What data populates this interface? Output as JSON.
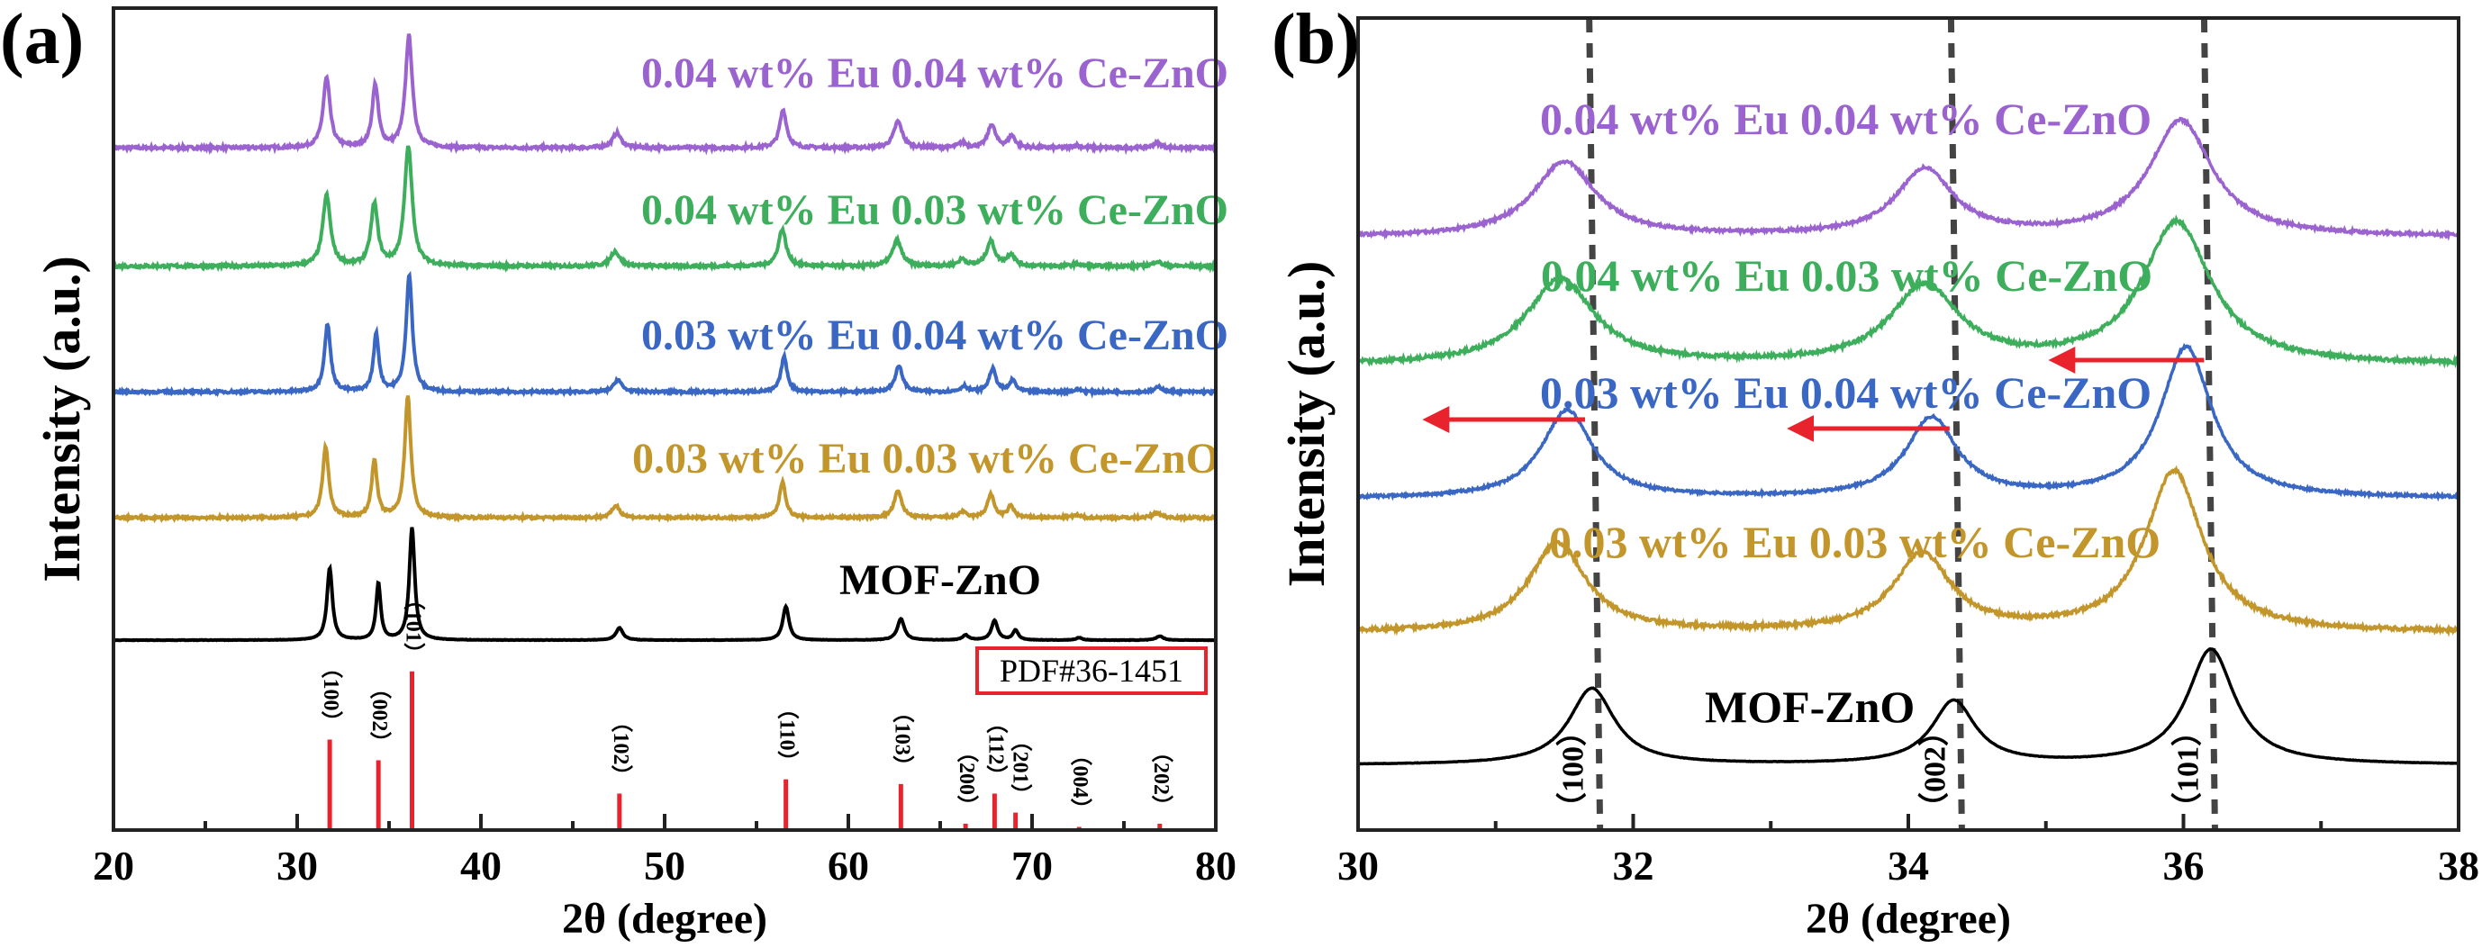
{
  "chart_data": [
    {
      "panel_label": "(a)",
      "type": "line",
      "xlabel": "2θ (degree)",
      "ylabel": "Intensity (a.u.)",
      "xlim": [
        20,
        80
      ],
      "x_ticks": [
        20,
        30,
        40,
        50,
        60,
        70,
        80
      ],
      "x_minor_step": 5,
      "y_ticks_shown": false,
      "grid": false,
      "series": [
        {
          "name": "0.04 wt% Eu 0.04 wt% Ce-ZnO",
          "color": "#9B63CF",
          "offset": 83,
          "peaks": [
            [
              31.6,
              8.5,
              0.45
            ],
            [
              34.25,
              7.6,
              0.4
            ],
            [
              36.08,
              13.6,
              0.45
            ],
            [
              47.4,
              1.8,
              0.55
            ],
            [
              56.45,
              4.6,
              0.45
            ],
            [
              62.7,
              3.2,
              0.55
            ],
            [
              66.2,
              0.6,
              0.5
            ],
            [
              67.8,
              2.8,
              0.5
            ],
            [
              68.9,
              1.4,
              0.45
            ],
            [
              72.4,
              0.3,
              0.5
            ],
            [
              76.8,
              0.6,
              0.5
            ]
          ],
          "noise": 0.35
        },
        {
          "name": "0.04 wt% Eu 0.03 wt% Ce-ZnO",
          "color": "#3DAE5B",
          "offset": 68.6,
          "peaks": [
            [
              31.6,
              8.6,
              0.5
            ],
            [
              34.2,
              7.5,
              0.45
            ],
            [
              36.05,
              14.5,
              0.5
            ],
            [
              47.3,
              1.8,
              0.6
            ],
            [
              56.4,
              4.5,
              0.5
            ],
            [
              62.65,
              3.1,
              0.6
            ],
            [
              66.2,
              0.8,
              0.5
            ],
            [
              67.75,
              3.0,
              0.55
            ],
            [
              68.85,
              1.4,
              0.5
            ],
            [
              72.4,
              0.3,
              0.5
            ],
            [
              76.8,
              0.6,
              0.5
            ]
          ],
          "noise": 0.35
        },
        {
          "name": "0.03 wt% Eu 0.04 wt% Ce-ZnO",
          "color": "#3A67C3",
          "offset": 53.3,
          "peaks": [
            [
              31.65,
              8.2,
              0.4
            ],
            [
              34.3,
              7.0,
              0.35
            ],
            [
              36.1,
              14.3,
              0.4
            ],
            [
              47.45,
              1.5,
              0.5
            ],
            [
              56.5,
              4.3,
              0.4
            ],
            [
              62.75,
              3.1,
              0.5
            ],
            [
              66.3,
              0.7,
              0.45
            ],
            [
              67.85,
              2.8,
              0.45
            ],
            [
              68.95,
              1.4,
              0.4
            ],
            [
              72.5,
              0.3,
              0.5
            ],
            [
              76.9,
              0.6,
              0.5
            ]
          ],
          "noise": 0.3
        },
        {
          "name": "0.03 wt% Eu 0.03 wt% Ce-ZnO",
          "color": "#C3962B",
          "offset": 38,
          "peaks": [
            [
              31.55,
              8.6,
              0.4
            ],
            [
              34.2,
              7.0,
              0.35
            ],
            [
              36.02,
              14.8,
              0.4
            ],
            [
              47.35,
              1.5,
              0.5
            ],
            [
              56.42,
              4.4,
              0.4
            ],
            [
              62.7,
              3.2,
              0.5
            ],
            [
              66.2,
              0.7,
              0.45
            ],
            [
              67.75,
              2.8,
              0.45
            ],
            [
              68.85,
              1.4,
              0.4
            ],
            [
              72.4,
              0.3,
              0.5
            ],
            [
              76.8,
              0.6,
              0.5
            ]
          ],
          "noise": 0.3
        },
        {
          "name": "MOF-ZnO",
          "color": "#000000",
          "offset": 23.1,
          "peaks": [
            [
              31.77,
              8.8,
              0.35
            ],
            [
              34.42,
              6.9,
              0.3
            ],
            [
              36.25,
              13.7,
              0.35
            ],
            [
              47.54,
              1.5,
              0.45
            ],
            [
              56.6,
              4.1,
              0.4
            ],
            [
              62.86,
              2.6,
              0.45
            ],
            [
              66.38,
              0.6,
              0.4
            ],
            [
              67.96,
              2.4,
              0.4
            ],
            [
              69.1,
              1.2,
              0.35
            ],
            [
              72.56,
              0.3,
              0.4
            ],
            [
              76.95,
              0.5,
              0.45
            ]
          ],
          "noise": 0.05
        }
      ],
      "reference": {
        "label": "PDF#36-1451",
        "color": "#E8232E",
        "lines": [
          {
            "x": 31.77,
            "intensity": 57,
            "hkl": "（100）"
          },
          {
            "x": 34.42,
            "intensity": 44,
            "hkl": "（002）"
          },
          {
            "x": 36.25,
            "intensity": 100,
            "hkl": "（101）"
          },
          {
            "x": 47.54,
            "intensity": 23,
            "hkl": "（102）"
          },
          {
            "x": 56.6,
            "intensity": 32,
            "hkl": "（110）"
          },
          {
            "x": 62.86,
            "intensity": 29,
            "hkl": "（103）"
          },
          {
            "x": 66.38,
            "intensity": 4,
            "hkl": "（200）"
          },
          {
            "x": 67.96,
            "intensity": 23,
            "hkl": "（112）"
          },
          {
            "x": 69.1,
            "intensity": 11,
            "hkl": "（201）"
          },
          {
            "x": 72.56,
            "intensity": 2,
            "hkl": "（004）"
          },
          {
            "x": 76.95,
            "intensity": 4,
            "hkl": "（202）"
          }
        ]
      }
    },
    {
      "panel_label": "(b)",
      "type": "line",
      "xlabel": "2θ (degree)",
      "ylabel": "Intensity (a.u.)",
      "xlim": [
        30,
        38
      ],
      "x_ticks": [
        30,
        32,
        34,
        36,
        38
      ],
      "x_minor_step": 1,
      "y_ticks_shown": false,
      "grid": false,
      "series": [
        {
          "name": "0.04 wt% Eu 0.04 wt% Ce-ZnO",
          "color": "#9B63CF",
          "offset": 73,
          "peaks": [
            [
              31.5,
              9.2,
              0.55
            ],
            [
              34.12,
              8.2,
              0.5
            ],
            [
              35.98,
              14.3,
              0.55
            ]
          ],
          "noise": 0.35
        },
        {
          "name": "0.04 wt% Eu 0.03 wt% Ce-ZnO",
          "color": "#3DAE5B",
          "offset": 57.2,
          "peaks": [
            [
              31.47,
              10.5,
              0.6
            ],
            [
              34.12,
              9.6,
              0.6
            ],
            [
              35.95,
              17.5,
              0.6
            ]
          ],
          "noise": 0.45
        },
        {
          "name": "0.03 wt% Eu 0.04 wt% Ce-ZnO",
          "color": "#3A67C3",
          "offset": 40.8,
          "peaks": [
            [
              31.52,
              10.8,
              0.45
            ],
            [
              34.17,
              9.8,
              0.45
            ],
            [
              36.02,
              18.6,
              0.45
            ]
          ],
          "noise": 0.3
        },
        {
          "name": "0.03 wt% Eu 0.03 wt% Ce-ZnO",
          "color": "#C3962B",
          "offset": 24.3,
          "peaks": [
            [
              31.45,
              11.0,
              0.5
            ],
            [
              34.1,
              9.5,
              0.5
            ],
            [
              35.93,
              19.8,
              0.5
            ]
          ],
          "noise": 0.45
        },
        {
          "name": "MOF-ZnO",
          "color": "#000000",
          "offset": 8,
          "peaks": [
            [
              31.7,
              9.4,
              0.4
            ],
            [
              34.33,
              7.8,
              0.38
            ],
            [
              36.2,
              14.2,
              0.42
            ]
          ],
          "noise": 0.05
        }
      ],
      "dashed_lines": [
        {
          "x": 31.7,
          "hkl": "（100）"
        },
        {
          "x": 34.33,
          "hkl": "（002）"
        },
        {
          "x": 36.17,
          "hkl": "（101）"
        }
      ],
      "shift_arrows": {
        "color": "#E8232E",
        "direction": "left",
        "arrows": [
          {
            "from": 36.15,
            "to": 35.05
          },
          {
            "from": 31.65,
            "to": 30.5
          },
          {
            "from": 34.3,
            "to": 33.15
          }
        ]
      }
    }
  ]
}
